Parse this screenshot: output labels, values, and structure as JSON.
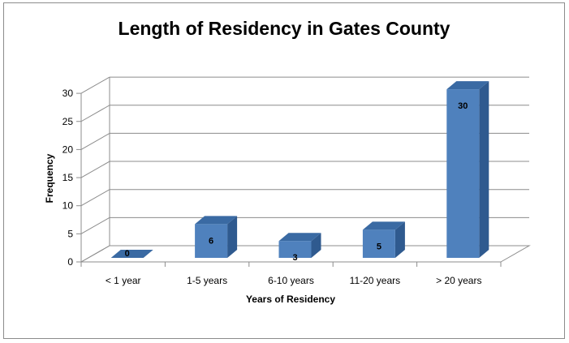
{
  "chart_data": {
    "type": "bar",
    "title": "Length of Residency in Gates County",
    "xlabel": "Years of Residency",
    "ylabel": "Frequency",
    "categories": [
      "< 1 year",
      "1-5 years",
      "6-10 years",
      "11-20 years",
      "> 20 years"
    ],
    "values": [
      0,
      6,
      3,
      5,
      30
    ],
    "data_labels": [
      "0",
      "6",
      "3",
      "5",
      "30"
    ],
    "yticks": [
      0,
      5,
      10,
      15,
      20,
      25,
      30
    ],
    "ytick_labels": [
      "0",
      "5",
      "10",
      "15",
      "20",
      "25",
      "30"
    ],
    "ylim": [
      0,
      30
    ],
    "grid": true,
    "legend": "none",
    "bar_color": "#4f81bd",
    "bar_side_color": "#2f5a8f",
    "bar_top_color": "#3a6aa3",
    "three_d": true
  }
}
